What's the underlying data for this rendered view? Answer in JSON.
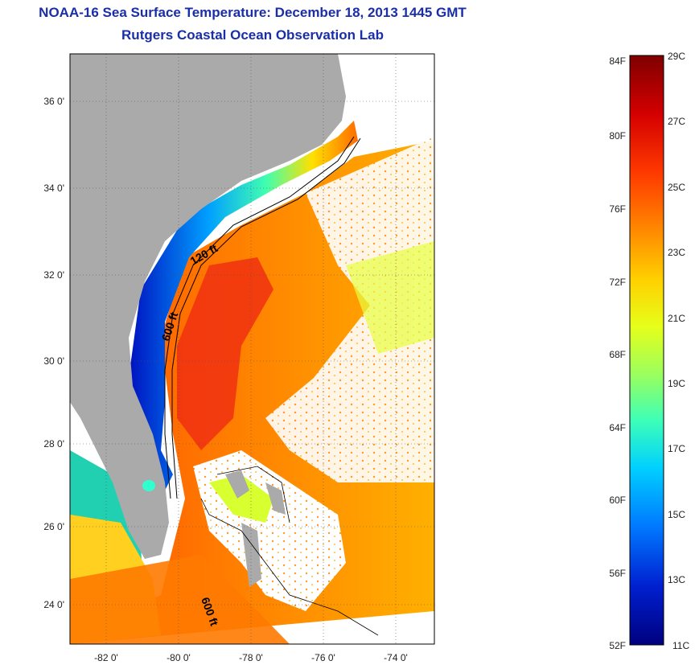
{
  "title": "NOAA-16 Sea Surface Temperature:  December 18, 2013 1445 GMT",
  "subtitle": "Rutgers Coastal Ocean Observation Lab",
  "map": {
    "lat_ticks": [
      "36 0'",
      "34 0'",
      "32 0'",
      "30 0'",
      "28 0'",
      "26 0'",
      "24 0'"
    ],
    "lon_ticks": [
      "-82 0'",
      "-80 0'",
      "-78 0'",
      "-76 0'",
      "-74 0'"
    ],
    "contour_labels": [
      "120 ft",
      "600 ft",
      "600 ft"
    ]
  },
  "colorbar": {
    "fahrenheit_labels": [
      "84F",
      "80F",
      "76F",
      "72F",
      "68F",
      "64F",
      "60F",
      "56F",
      "52F"
    ],
    "celsius_labels": [
      "29C",
      "27C",
      "25C",
      "23C",
      "21C",
      "19C",
      "17C",
      "15C",
      "13C",
      "11C"
    ],
    "colors": [
      "#7f0000",
      "#d40000",
      "#ff3a00",
      "#ff8c00",
      "#ffd000",
      "#e6ff1a",
      "#9cff5c",
      "#3cffb8",
      "#00d0ff",
      "#0078ff",
      "#0020d0",
      "#00007f"
    ]
  }
}
